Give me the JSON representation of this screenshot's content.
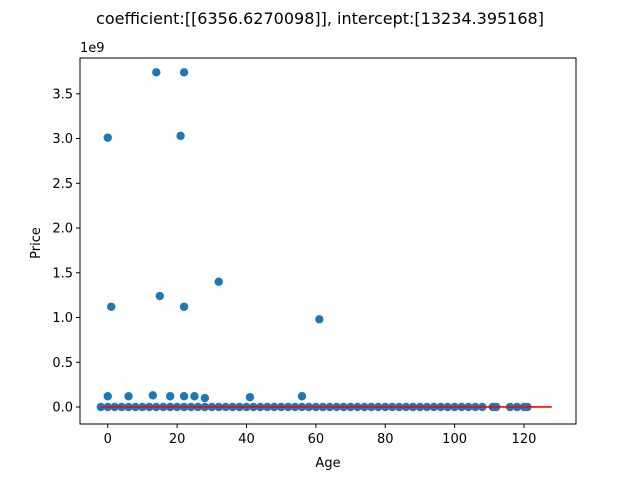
{
  "chart_data": {
    "type": "scatter",
    "title": "coefficient:[[6356.6270098]], intercept:[13234.395168]",
    "xlabel": "Age",
    "ylabel": "Price",
    "y_offset_label": "1e9",
    "xlim": [
      -8,
      135
    ],
    "ylim": [
      -0.19,
      3.9
    ],
    "y_scale_note": "y values in units of 1e9",
    "xticks": [
      0,
      20,
      40,
      60,
      80,
      100,
      120
    ],
    "xtick_labels": [
      "0",
      "20",
      "40",
      "60",
      "80",
      "100",
      "120"
    ],
    "yticks": [
      0.0,
      0.5,
      1.0,
      1.5,
      2.0,
      2.5,
      3.0,
      3.5
    ],
    "ytick_labels": [
      "0.0",
      "0.5",
      "1.0",
      "1.5",
      "2.0",
      "2.5",
      "3.0",
      "3.5"
    ],
    "grid": false,
    "series": [
      {
        "type": "scatter",
        "color": "#1f77b4",
        "points": [
          [
            14,
            3.74
          ],
          [
            22,
            3.74
          ],
          [
            0,
            3.01
          ],
          [
            21,
            3.03
          ],
          [
            32,
            1.4
          ],
          [
            15,
            1.24
          ],
          [
            1,
            1.12
          ],
          [
            22,
            1.12
          ],
          [
            61,
            0.98
          ],
          [
            0,
            0.12
          ],
          [
            6,
            0.12
          ],
          [
            13,
            0.13
          ],
          [
            18,
            0.12
          ],
          [
            22,
            0.12
          ],
          [
            25,
            0.12
          ],
          [
            28,
            0.1
          ],
          [
            41,
            0.11
          ],
          [
            56,
            0.12
          ],
          [
            -2,
            0.0
          ],
          [
            0,
            0.0
          ],
          [
            2,
            0.0
          ],
          [
            4,
            0.0
          ],
          [
            6,
            0.0
          ],
          [
            8,
            0.0
          ],
          [
            10,
            0.0
          ],
          [
            12,
            0.0
          ],
          [
            14,
            0.0
          ],
          [
            16,
            0.0
          ],
          [
            18,
            0.0
          ],
          [
            20,
            0.0
          ],
          [
            22,
            0.0
          ],
          [
            24,
            0.0
          ],
          [
            26,
            0.0
          ],
          [
            28,
            0.0
          ],
          [
            30,
            0.0
          ],
          [
            32,
            0.0
          ],
          [
            34,
            0.0
          ],
          [
            36,
            0.0
          ],
          [
            38,
            0.0
          ],
          [
            40,
            0.0
          ],
          [
            42,
            0.0
          ],
          [
            44,
            0.0
          ],
          [
            46,
            0.0
          ],
          [
            48,
            0.0
          ],
          [
            50,
            0.0
          ],
          [
            52,
            0.0
          ],
          [
            54,
            0.0
          ],
          [
            56,
            0.0
          ],
          [
            58,
            0.0
          ],
          [
            60,
            0.0
          ],
          [
            62,
            0.0
          ],
          [
            64,
            0.0
          ],
          [
            66,
            0.0
          ],
          [
            68,
            0.0
          ],
          [
            70,
            0.0
          ],
          [
            72,
            0.0
          ],
          [
            74,
            0.0
          ],
          [
            76,
            0.0
          ],
          [
            78,
            0.0
          ],
          [
            80,
            0.0
          ],
          [
            82,
            0.0
          ],
          [
            84,
            0.0
          ],
          [
            86,
            0.0
          ],
          [
            88,
            0.0
          ],
          [
            90,
            0.0
          ],
          [
            92,
            0.0
          ],
          [
            94,
            0.0
          ],
          [
            96,
            0.0
          ],
          [
            98,
            0.0
          ],
          [
            100,
            0.0
          ],
          [
            102,
            0.0
          ],
          [
            104,
            0.0
          ],
          [
            106,
            0.0
          ],
          [
            108,
            0.0
          ],
          [
            111,
            0.0
          ],
          [
            112,
            0.0
          ],
          [
            116,
            0.0
          ],
          [
            118,
            0.0
          ],
          [
            120,
            0.0
          ],
          [
            121,
            0.0
          ]
        ]
      },
      {
        "type": "line",
        "color": "#ff0000",
        "x": [
          -2,
          128
        ],
        "y": [
          0.0,
          0.0008
        ]
      }
    ]
  }
}
